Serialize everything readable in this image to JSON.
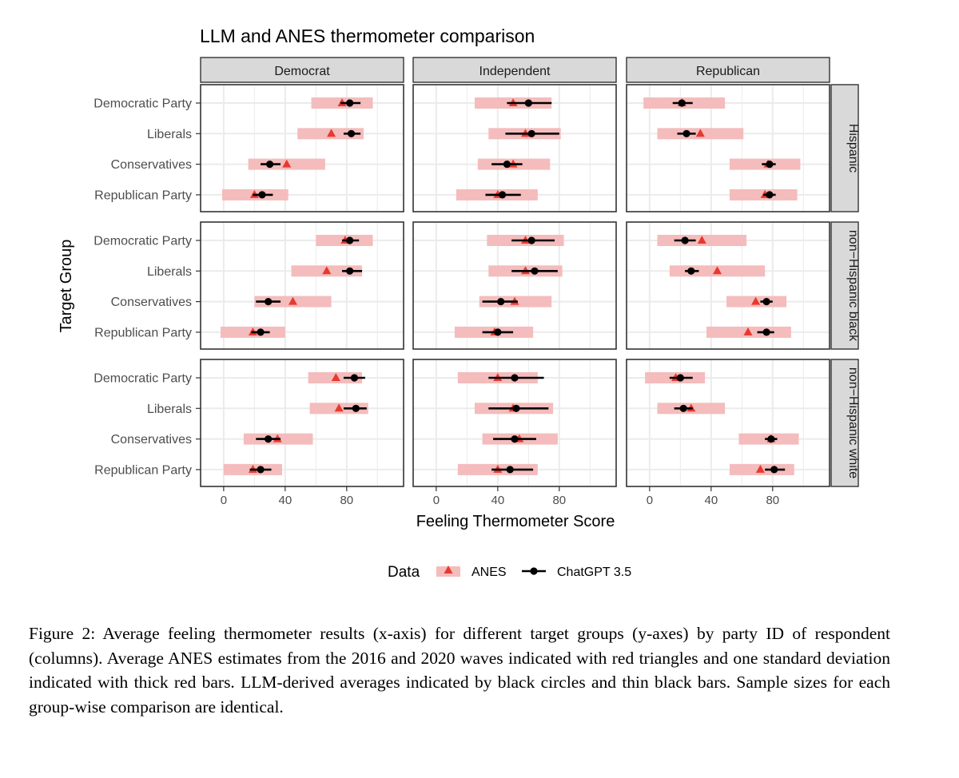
{
  "chart_data": {
    "type": "dot-and-whisker facet",
    "title": "LLM and ANES thermometer comparison",
    "xlabel": "Feeling Thermometer Score",
    "ylabel": "Target Group",
    "xlim": [
      -15,
      117
    ],
    "x_ticks": [
      "0",
      "40",
      "80"
    ],
    "x_tick_values": [
      0,
      40,
      80
    ],
    "columns": [
      "Democrat",
      "Independent",
      "Republican"
    ],
    "rows": [
      "Hispanic",
      "non−Hispanic black",
      "non−Hispanic white"
    ],
    "categories": [
      "Democratic Party",
      "Liberals",
      "Conservatives",
      "Republican Party"
    ],
    "grid": true,
    "legend": {
      "title": "Data",
      "position": "bottom",
      "items": [
        "ANES",
        "ChatGPT 3.5"
      ]
    },
    "colors": {
      "anes": "#e8392f",
      "anes_band": "#f4bcbc",
      "chatgpt": "#000000",
      "strip": "#d9d9d9",
      "grid": "#ebebeb"
    },
    "panels": [
      {
        "row": "Hispanic",
        "col": "Democrat",
        "groups": [
          {
            "group": "Democratic Party",
            "anes_mean": 77,
            "anes_sd": [
              57,
              97
            ],
            "gpt_mean": 82,
            "gpt_range": [
              76,
              89
            ]
          },
          {
            "group": "Liberals",
            "anes_mean": 70,
            "anes_sd": [
              48,
              91
            ],
            "gpt_mean": 83,
            "gpt_range": [
              78,
              89
            ]
          },
          {
            "group": "Conservatives",
            "anes_mean": 41,
            "anes_sd": [
              16,
              66
            ],
            "gpt_mean": 30,
            "gpt_range": [
              24,
              37
            ]
          },
          {
            "group": "Republican Party",
            "anes_mean": 20,
            "anes_sd": [
              -1,
              42
            ],
            "gpt_mean": 25,
            "gpt_range": [
              19,
              32
            ]
          }
        ]
      },
      {
        "row": "Hispanic",
        "col": "Independent",
        "groups": [
          {
            "group": "Democratic Party",
            "anes_mean": 50,
            "anes_sd": [
              25,
              75
            ],
            "gpt_mean": 60,
            "gpt_range": [
              46,
              75
            ]
          },
          {
            "group": "Liberals",
            "anes_mean": 58,
            "anes_sd": [
              34,
              81
            ],
            "gpt_mean": 62,
            "gpt_range": [
              45,
              80
            ]
          },
          {
            "group": "Conservatives",
            "anes_mean": 50,
            "anes_sd": [
              27,
              74
            ],
            "gpt_mean": 46,
            "gpt_range": [
              36,
              56
            ]
          },
          {
            "group": "Republican Party",
            "anes_mean": 40,
            "anes_sd": [
              13,
              66
            ],
            "gpt_mean": 43,
            "gpt_range": [
              32,
              55
            ]
          }
        ]
      },
      {
        "row": "Hispanic",
        "col": "Republican",
        "groups": [
          {
            "group": "Democratic Party",
            "anes_mean": 21,
            "anes_sd": [
              -4,
              49
            ],
            "gpt_mean": 21,
            "gpt_range": [
              15,
              28
            ]
          },
          {
            "group": "Liberals",
            "anes_mean": 33,
            "anes_sd": [
              5,
              61
            ],
            "gpt_mean": 24,
            "gpt_range": [
              18,
              30
            ]
          },
          {
            "group": "Conservatives",
            "anes_mean": 77,
            "anes_sd": [
              52,
              98
            ],
            "gpt_mean": 78,
            "gpt_range": [
              73,
              82
            ]
          },
          {
            "group": "Republican Party",
            "anes_mean": 75,
            "anes_sd": [
              52,
              96
            ],
            "gpt_mean": 78,
            "gpt_range": [
              74,
              82
            ]
          }
        ]
      },
      {
        "row": "non−Hispanic black",
        "col": "Democrat",
        "groups": [
          {
            "group": "Democratic Party",
            "anes_mean": 79,
            "anes_sd": [
              60,
              97
            ],
            "gpt_mean": 82,
            "gpt_range": [
              77,
              88
            ]
          },
          {
            "group": "Liberals",
            "anes_mean": 67,
            "anes_sd": [
              44,
              90
            ],
            "gpt_mean": 82,
            "gpt_range": [
              77,
              90
            ]
          },
          {
            "group": "Conservatives",
            "anes_mean": 45,
            "anes_sd": [
              20,
              70
            ],
            "gpt_mean": 29,
            "gpt_range": [
              21,
              37
            ]
          },
          {
            "group": "Republican Party",
            "anes_mean": 19,
            "anes_sd": [
              -2,
              40
            ],
            "gpt_mean": 24,
            "gpt_range": [
              18,
              30
            ]
          }
        ]
      },
      {
        "row": "non−Hispanic black",
        "col": "Independent",
        "groups": [
          {
            "group": "Democratic Party",
            "anes_mean": 58,
            "anes_sd": [
              33,
              83
            ],
            "gpt_mean": 62,
            "gpt_range": [
              49,
              77
            ]
          },
          {
            "group": "Liberals",
            "anes_mean": 58,
            "anes_sd": [
              34,
              82
            ],
            "gpt_mean": 64,
            "gpt_range": [
              49,
              79
            ]
          },
          {
            "group": "Conservatives",
            "anes_mean": 51,
            "anes_sd": [
              28,
              75
            ],
            "gpt_mean": 42,
            "gpt_range": [
              30,
              53
            ]
          },
          {
            "group": "Republican Party",
            "anes_mean": 38,
            "anes_sd": [
              12,
              63
            ],
            "gpt_mean": 40,
            "gpt_range": [
              30,
              50
            ]
          }
        ]
      },
      {
        "row": "non−Hispanic black",
        "col": "Republican",
        "groups": [
          {
            "group": "Democratic Party",
            "anes_mean": 34,
            "anes_sd": [
              5,
              63
            ],
            "gpt_mean": 23,
            "gpt_range": [
              16,
              30
            ]
          },
          {
            "group": "Liberals",
            "anes_mean": 44,
            "anes_sd": [
              13,
              75
            ],
            "gpt_mean": 27,
            "gpt_range": [
              23,
              32
            ]
          },
          {
            "group": "Conservatives",
            "anes_mean": 69,
            "anes_sd": [
              50,
              89
            ],
            "gpt_mean": 76,
            "gpt_range": [
              72,
              80
            ]
          },
          {
            "group": "Republican Party",
            "anes_mean": 64,
            "anes_sd": [
              37,
              92
            ],
            "gpt_mean": 76,
            "gpt_range": [
              70,
              81
            ]
          }
        ]
      },
      {
        "row": "non−Hispanic white",
        "col": "Democrat",
        "groups": [
          {
            "group": "Democratic Party",
            "anes_mean": 73,
            "anes_sd": [
              55,
              90
            ],
            "gpt_mean": 85,
            "gpt_range": [
              78,
              92
            ]
          },
          {
            "group": "Liberals",
            "anes_mean": 75,
            "anes_sd": [
              56,
              94
            ],
            "gpt_mean": 86,
            "gpt_range": [
              78,
              93
            ]
          },
          {
            "group": "Conservatives",
            "anes_mean": 35,
            "anes_sd": [
              13,
              58
            ],
            "gpt_mean": 29,
            "gpt_range": [
              21,
              37
            ]
          },
          {
            "group": "Republican Party",
            "anes_mean": 19,
            "anes_sd": [
              0,
              38
            ],
            "gpt_mean": 24,
            "gpt_range": [
              17,
              31
            ]
          }
        ]
      },
      {
        "row": "non−Hispanic white",
        "col": "Independent",
        "groups": [
          {
            "group": "Democratic Party",
            "anes_mean": 40,
            "anes_sd": [
              14,
              66
            ],
            "gpt_mean": 51,
            "gpt_range": [
              34,
              70
            ]
          },
          {
            "group": "Liberals",
            "anes_mean": 50,
            "anes_sd": [
              25,
              76
            ],
            "gpt_mean": 52,
            "gpt_range": [
              34,
              73
            ]
          },
          {
            "group": "Conservatives",
            "anes_mean": 54,
            "anes_sd": [
              30,
              79
            ],
            "gpt_mean": 51,
            "gpt_range": [
              37,
              65
            ]
          },
          {
            "group": "Republican Party",
            "anes_mean": 40,
            "anes_sd": [
              14,
              66
            ],
            "gpt_mean": 48,
            "gpt_range": [
              36,
              63
            ]
          }
        ]
      },
      {
        "row": "non−Hispanic white",
        "col": "Republican",
        "groups": [
          {
            "group": "Democratic Party",
            "anes_mean": 17,
            "anes_sd": [
              -3,
              36
            ],
            "gpt_mean": 20,
            "gpt_range": [
              13,
              28
            ]
          },
          {
            "group": "Liberals",
            "anes_mean": 27,
            "anes_sd": [
              5,
              49
            ],
            "gpt_mean": 22,
            "gpt_range": [
              16,
              28
            ]
          },
          {
            "group": "Conservatives",
            "anes_mean": 79,
            "anes_sd": [
              58,
              97
            ],
            "gpt_mean": 79,
            "gpt_range": [
              75,
              83
            ]
          },
          {
            "group": "Republican Party",
            "anes_mean": 72,
            "anes_sd": [
              52,
              94
            ],
            "gpt_mean": 81,
            "gpt_range": [
              75,
              88
            ]
          }
        ]
      }
    ]
  },
  "caption": "Figure 2: Average feeling thermometer results (x-axis) for different target groups (y-axes) by party ID of respondent (columns). Average ANES estimates from the 2016 and 2020 waves indicated with red triangles and one standard deviation indicated with thick red bars. LLM-derived averages indicated by black circles and thin black bars. Sample sizes for each group-wise comparison are identical."
}
